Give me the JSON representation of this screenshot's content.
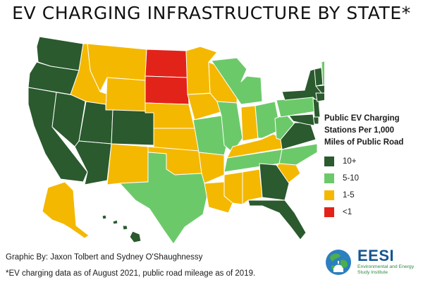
{
  "title": "EV CHARGING INFRASTRUCTURE BY STATE*",
  "legend": {
    "title_lines": [
      "Public EV Charging",
      "Stations Per 1,000",
      "Miles of Public Road"
    ],
    "items": [
      {
        "label": "10+",
        "color": "#2a5a2e"
      },
      {
        "label": "5-10",
        "color": "#6cc96a"
      },
      {
        "label": "1-5",
        "color": "#f4b800"
      },
      {
        "label": "<1",
        "color": "#e2231a"
      }
    ]
  },
  "map_states": {
    "WA": "10+",
    "OR": "10+",
    "CA": "10+",
    "NV": "10+",
    "AZ": "10+",
    "UT": "10+",
    "CO": "10+",
    "HI": "10+",
    "GA": "10+",
    "FL": "10+",
    "VA": "10+",
    "MD": "10+",
    "DE": "10+",
    "NJ": "10+",
    "NY": "10+",
    "CT": "10+",
    "RI": "10+",
    "MA": "10+",
    "VT": "10+",
    "ME": "10+",
    "TX": "5-10",
    "MO": "5-10",
    "IL": "5-10",
    "MI": "5-10",
    "OH": "5-10",
    "PA": "5-10",
    "NC": "5-10",
    "TN": "5-10",
    "NH": "5-10",
    "WV": "5-10",
    "ID": "1-5",
    "MT": "1-5",
    "WY": "1-5",
    "NM": "1-5",
    "NE": "1-5",
    "KS": "1-5",
    "OK": "1-5",
    "MN": "1-5",
    "IA": "1-5",
    "WI": "1-5",
    "AR": "1-5",
    "LA": "1-5",
    "MS": "1-5",
    "AL": "1-5",
    "IN": "1-5",
    "KY": "1-5",
    "SC": "1-5",
    "AK": "1-5",
    "ND": "<1",
    "SD": "<1"
  },
  "credit": "Graphic By: Jaxon Tolbert and Sydney O'Shaughnessy",
  "footnote": "*EV charging data as of August 2021, public road mileage as of 2019.",
  "logo": {
    "name": "EESI",
    "tagline_1": "Environmental and Energy",
    "tagline_2": "Study Institute",
    "icon": "globe-icon"
  }
}
